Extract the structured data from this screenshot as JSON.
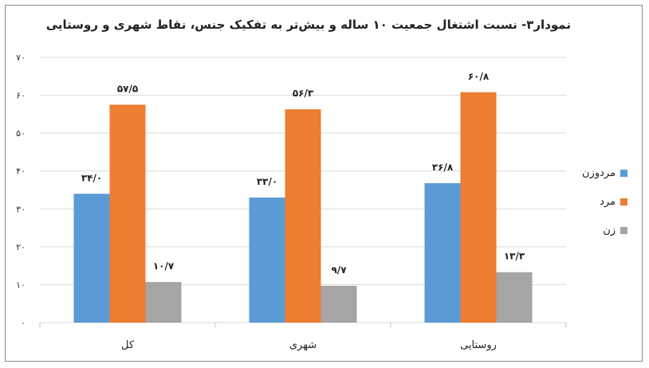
{
  "chart_data": {
    "type": "bar",
    "title": "نمودار۳- نسبت اشتغال جمعیت ۱۰ ساله و بیش‌تر به تفکیک جنس، نقاط شهری و روستایی",
    "categories": [
      "کل",
      "شهری",
      "روستایی"
    ],
    "ylim": [
      0,
      70
    ],
    "yticks": [
      0,
      10,
      20,
      30,
      40,
      50,
      60,
      70
    ],
    "ytick_labels": [
      "۰",
      "۱۰",
      "۲۰",
      "۳۰",
      "۴۰",
      "۵۰",
      "۶۰",
      "۷۰"
    ],
    "series": [
      {
        "name": "مردوزن",
        "color": "#5b9bd5",
        "values": [
          34.0,
          33.0,
          36.8
        ],
        "labels": [
          "۳۴/۰",
          "۳۳/۰",
          "۳۶/۸"
        ]
      },
      {
        "name": "مرد",
        "color": "#ed7d31",
        "values": [
          57.5,
          56.3,
          60.8
        ],
        "labels": [
          "۵۷/۵",
          "۵۶/۳",
          "۶۰/۸"
        ]
      },
      {
        "name": "زن",
        "color": "#a5a5a5",
        "values": [
          10.7,
          9.7,
          13.3
        ],
        "labels": [
          "۱۰/۷",
          "۹/۷",
          "۱۳/۳"
        ]
      }
    ],
    "grid": true,
    "legend_position": "right"
  }
}
